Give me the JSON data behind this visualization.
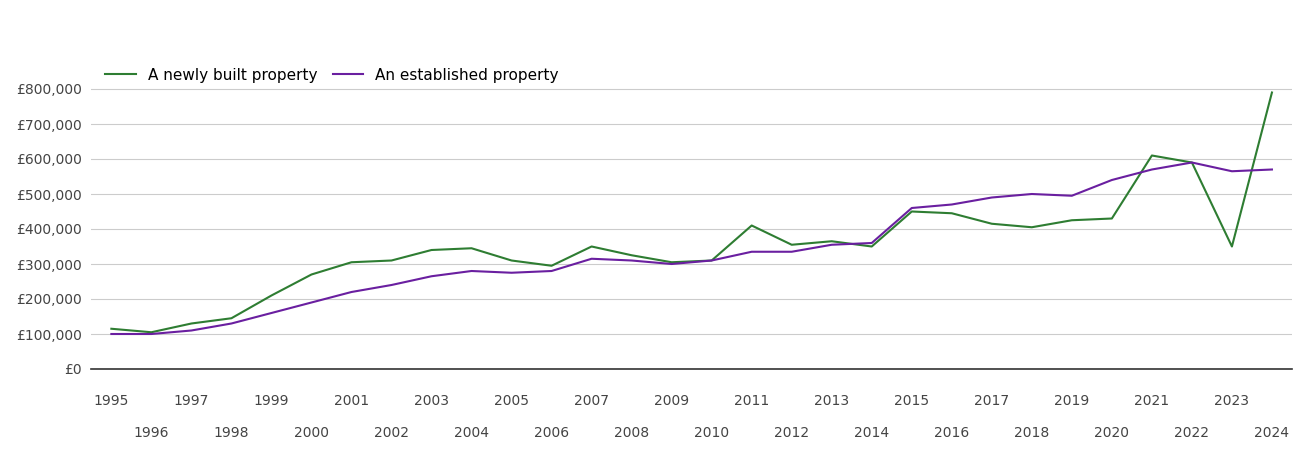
{
  "newly_built": {
    "years": [
      1995,
      1996,
      1997,
      1998,
      1999,
      2000,
      2001,
      2002,
      2003,
      2004,
      2005,
      2006,
      2007,
      2008,
      2009,
      2010,
      2011,
      2012,
      2013,
      2014,
      2015,
      2016,
      2017,
      2018,
      2019,
      2020,
      2021,
      2022,
      2023,
      2024
    ],
    "values": [
      115000,
      105000,
      130000,
      145000,
      210000,
      270000,
      305000,
      310000,
      340000,
      345000,
      310000,
      295000,
      350000,
      325000,
      305000,
      310000,
      410000,
      355000,
      365000,
      350000,
      450000,
      445000,
      415000,
      405000,
      425000,
      430000,
      610000,
      590000,
      350000,
      790000
    ]
  },
  "established": {
    "years": [
      1995,
      1996,
      1997,
      1998,
      1999,
      2000,
      2001,
      2002,
      2003,
      2004,
      2005,
      2006,
      2007,
      2008,
      2009,
      2010,
      2011,
      2012,
      2013,
      2014,
      2015,
      2016,
      2017,
      2018,
      2019,
      2020,
      2021,
      2022,
      2023,
      2024
    ],
    "values": [
      100000,
      100000,
      110000,
      130000,
      160000,
      190000,
      220000,
      240000,
      265000,
      280000,
      275000,
      280000,
      315000,
      310000,
      300000,
      310000,
      335000,
      335000,
      355000,
      360000,
      460000,
      470000,
      490000,
      500000,
      495000,
      540000,
      570000,
      590000,
      565000,
      570000
    ]
  },
  "newly_built_color": "#2e7d32",
  "established_color": "#6a1fa0",
  "newly_built_label": "A newly built property",
  "established_label": "An established property",
  "ylim": [
    0,
    900000
  ],
  "yticks": [
    0,
    100000,
    200000,
    300000,
    400000,
    500000,
    600000,
    700000,
    800000
  ],
  "ytick_labels": [
    "£0",
    "£100,000",
    "£200,000",
    "£300,000",
    "£400,000",
    "£500,000",
    "£600,000",
    "£700,000",
    "£800,000"
  ],
  "xticks_top": [
    1995,
    1997,
    1999,
    2001,
    2003,
    2005,
    2007,
    2009,
    2011,
    2013,
    2015,
    2017,
    2019,
    2021,
    2023
  ],
  "xticks_bottom": [
    1996,
    1998,
    2000,
    2002,
    2004,
    2006,
    2008,
    2010,
    2012,
    2014,
    2016,
    2018,
    2020,
    2022,
    2024
  ],
  "background_color": "#ffffff",
  "grid_color": "#cccccc",
  "line_width": 1.5,
  "legend_fontsize": 11,
  "tick_fontsize": 10
}
